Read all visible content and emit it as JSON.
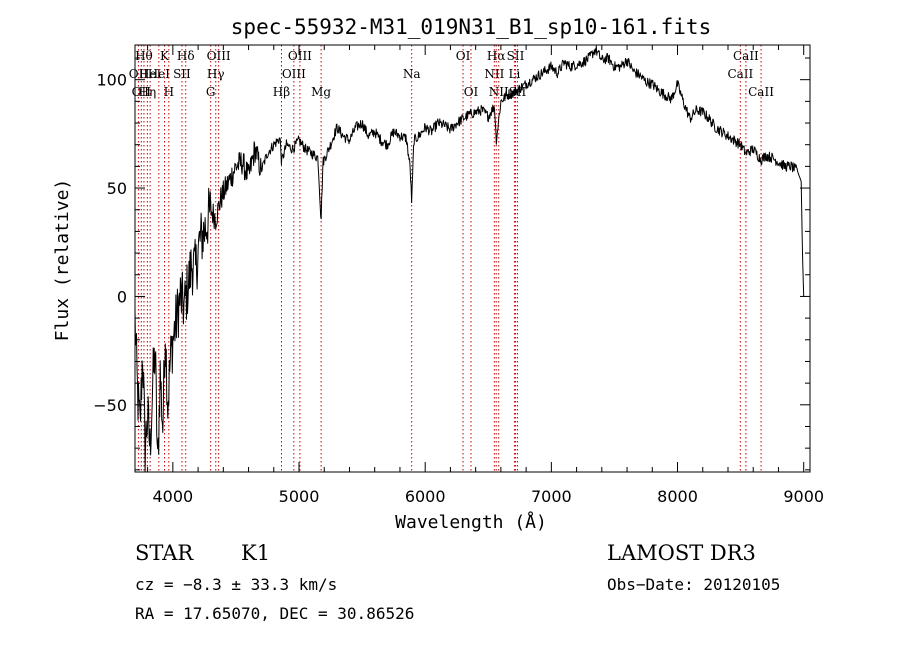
{
  "chart_data": {
    "type": "line",
    "title": "spec-55932-M31_019N31_B1_sp10-161.fits",
    "xlabel": "Wavelength (Å)",
    "ylabel": "Flux (relative)",
    "xlim": [
      3700,
      9050
    ],
    "ylim": [
      -81,
      116
    ],
    "xticks": [
      4000,
      5000,
      6000,
      7000,
      8000,
      9000
    ],
    "xtick_labels": [
      "4000",
      "5000",
      "6000",
      "7000",
      "8000",
      "9000"
    ],
    "yticks": [
      -50,
      0,
      50,
      100
    ],
    "ytick_labels": [
      "−50",
      "0",
      "50",
      "100"
    ],
    "grid": false,
    "series": [
      {
        "name": "spectrum",
        "x": [
          3700,
          3720,
          3740,
          3760,
          3780,
          3800,
          3820,
          3840,
          3860,
          3880,
          3900,
          3920,
          3940,
          3960,
          3980,
          4000,
          4030,
          4060,
          4090,
          4120,
          4150,
          4180,
          4210,
          4250,
          4300,
          4340,
          4380,
          4420,
          4460,
          4500,
          4550,
          4600,
          4650,
          4700,
          4750,
          4800,
          4850,
          4861,
          4900,
          4950,
          5000,
          5050,
          5100,
          5150,
          5175,
          5190,
          5250,
          5300,
          5350,
          5400,
          5450,
          5500,
          5550,
          5600,
          5650,
          5700,
          5750,
          5800,
          5850,
          5880,
          5893,
          5910,
          5950,
          6000,
          6050,
          6100,
          6150,
          6200,
          6250,
          6300,
          6350,
          6400,
          6450,
          6500,
          6550,
          6563,
          6600,
          6650,
          6700,
          6750,
          6800,
          6850,
          6900,
          6950,
          7000,
          7050,
          7100,
          7150,
          7200,
          7250,
          7300,
          7350,
          7400,
          7450,
          7500,
          7550,
          7600,
          7650,
          7700,
          7750,
          7800,
          7850,
          7900,
          7950,
          8000,
          8050,
          8100,
          8150,
          8200,
          8250,
          8300,
          8350,
          8400,
          8450,
          8500,
          8542,
          8600,
          8662,
          8700,
          8750,
          8800,
          8850,
          8900,
          8950,
          8980,
          8990,
          9000,
          9010
        ],
        "values": [
          -10,
          -45,
          -60,
          -25,
          -70,
          -55,
          -70,
          -40,
          -25,
          -80,
          -35,
          -60,
          -15,
          -50,
          -30,
          -20,
          -10,
          0,
          -5,
          5,
          15,
          12,
          25,
          30,
          40,
          36,
          45,
          50,
          55,
          60,
          62,
          55,
          68,
          58,
          66,
          70,
          73,
          62,
          70,
          68,
          72,
          68,
          66,
          64,
          35,
          62,
          70,
          78,
          74,
          72,
          78,
          80,
          74,
          76,
          72,
          70,
          76,
          74,
          73,
          60,
          43,
          72,
          74,
          78,
          76,
          80,
          79,
          77,
          80,
          82,
          84,
          85,
          86,
          83,
          88,
          72,
          90,
          93,
          94,
          96,
          98,
          100,
          102,
          104,
          106,
          103,
          108,
          106,
          107,
          108,
          110,
          114,
          109,
          110,
          106,
          106,
          109,
          104,
          102,
          99,
          98,
          95,
          93,
          91,
          98,
          89,
          82,
          86,
          85,
          82,
          78,
          76,
          74,
          72,
          70,
          66,
          68,
          63,
          65,
          64,
          62,
          60,
          60,
          58,
          53,
          20,
          0,
          0
        ]
      }
    ],
    "lines": [
      {
        "x": 3727,
        "label": "OII",
        "row": 1
      },
      {
        "x": 3750,
        "label": "OII",
        "row": 2
      },
      {
        "x": 3771,
        "label": "Hθ",
        "row": 0
      },
      {
        "x": 3798,
        "label": "Hη",
        "row": 2
      },
      {
        "x": 3820,
        "label": "HeI",
        "row": 1
      },
      {
        "x": 3889,
        "label": "HeI",
        "row": 1
      },
      {
        "x": 3934,
        "label": "K",
        "row": 0
      },
      {
        "x": 3968,
        "label": "H",
        "row": 2
      },
      {
        "x": 4072,
        "label": "SII",
        "row": 1
      },
      {
        "x": 4102,
        "label": "Hδ",
        "row": 0
      },
      {
        "x": 4300,
        "label": "G",
        "row": 2
      },
      {
        "x": 4340,
        "label": "Hγ",
        "row": 1
      },
      {
        "x": 4363,
        "label": "OIII",
        "row": 0
      },
      {
        "x": 4861,
        "label": "Hβ",
        "row": 2
      },
      {
        "x": 4959,
        "label": "OIII",
        "row": 1
      },
      {
        "x": 5007,
        "label": "OIII",
        "row": 0
      },
      {
        "x": 5175,
        "label": "Mg",
        "row": 2
      },
      {
        "x": 5893,
        "label": "Na",
        "row": 1
      },
      {
        "x": 6300,
        "label": "OI",
        "row": 0
      },
      {
        "x": 6363,
        "label": "OI",
        "row": 2
      },
      {
        "x": 6548,
        "label": "NII",
        "row": 1
      },
      {
        "x": 6563,
        "label": "Hα",
        "row": 0
      },
      {
        "x": 6583,
        "label": "NII",
        "row": 2
      },
      {
        "x": 6707,
        "label": "Li",
        "row": 1
      },
      {
        "x": 6716,
        "label": "SII",
        "row": 0
      },
      {
        "x": 6731,
        "label": "SII",
        "row": 2
      },
      {
        "x": 8498,
        "label": "CaII",
        "row": 1
      },
      {
        "x": 8542,
        "label": "CaII",
        "row": 0
      },
      {
        "x": 8662,
        "label": "CaII",
        "row": 2
      }
    ]
  },
  "info": {
    "class": "STAR",
    "subclass": "K1",
    "survey": "LAMOST DR3",
    "cz": "cz = −8.3 ± 33.3 km/s",
    "obs_date": "Obs−Date: 20120105",
    "coords": "RA =  17.65070, DEC =  30.86526"
  }
}
